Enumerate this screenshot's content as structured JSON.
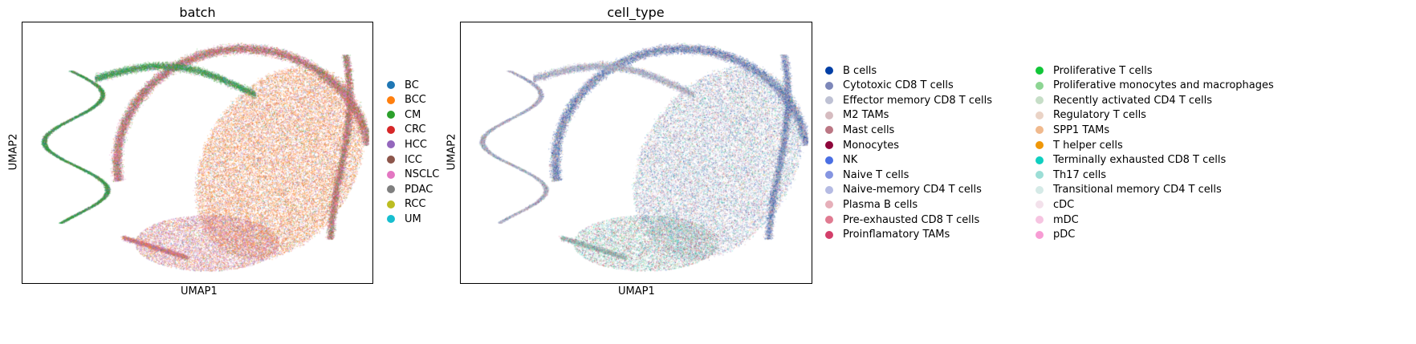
{
  "chart_data": [
    {
      "type": "scatter",
      "title": "batch",
      "xlabel": "UMAP1",
      "ylabel": "UMAP2",
      "grid": false,
      "legend_position": "right",
      "series": [
        {
          "name": "BC",
          "color": "#1f77b4"
        },
        {
          "name": "BCC",
          "color": "#ff7f0e"
        },
        {
          "name": "CM",
          "color": "#2ca02c"
        },
        {
          "name": "CRC",
          "color": "#d62728"
        },
        {
          "name": "HCC",
          "color": "#9467bd"
        },
        {
          "name": "ICC",
          "color": "#8c564b"
        },
        {
          "name": "NSCLC",
          "color": "#e377c2"
        },
        {
          "name": "PDAC",
          "color": "#7f7f7f"
        },
        {
          "name": "RCC",
          "color": "#bcbd22"
        },
        {
          "name": "UM",
          "color": "#17becf"
        }
      ]
    },
    {
      "type": "scatter",
      "title": "cell_type",
      "xlabel": "UMAP1",
      "ylabel": "UMAP2",
      "grid": false,
      "legend_position": "right, two columns",
      "series": [
        {
          "name": "B cells",
          "color": "#023fa5"
        },
        {
          "name": "Cytotoxic CD8 T cells",
          "color": "#7d87b9"
        },
        {
          "name": "Effector memory CD8 T cells",
          "color": "#bec1d4"
        },
        {
          "name": "M2 TAMs",
          "color": "#d6bcc0"
        },
        {
          "name": "Mast cells",
          "color": "#bb7784"
        },
        {
          "name": "Monocytes",
          "color": "#8e063b"
        },
        {
          "name": "NK",
          "color": "#4a6fe3"
        },
        {
          "name": "Naive T cells",
          "color": "#8595e1"
        },
        {
          "name": "Naive-memory CD4 T cells",
          "color": "#b5bbe3"
        },
        {
          "name": "Plasma B cells",
          "color": "#e6afb9"
        },
        {
          "name": "Pre-exhausted CD8 T cells",
          "color": "#e07b91"
        },
        {
          "name": "Proinflamatory TAMs",
          "color": "#d33f6a"
        },
        {
          "name": "Proliferative T cells",
          "color": "#11c638"
        },
        {
          "name": "Proliferative monocytes and macrophages",
          "color": "#8dd593"
        },
        {
          "name": "Recently activated CD4 T cells",
          "color": "#c6dec7"
        },
        {
          "name": "Regulatory T cells",
          "color": "#ead3c6"
        },
        {
          "name": "SPP1 TAMs",
          "color": "#f0b98d"
        },
        {
          "name": "T helper cells",
          "color": "#ef9708"
        },
        {
          "name": "Terminally exhausted CD8 T cells",
          "color": "#0fcfc0"
        },
        {
          "name": "Th17 cells",
          "color": "#9cded6"
        },
        {
          "name": "Transitional memory CD4 T cells",
          "color": "#d5eae7"
        },
        {
          "name": "cDC",
          "color": "#f3e1eb"
        },
        {
          "name": "mDC",
          "color": "#f6c4e1"
        },
        {
          "name": "pDC",
          "color": "#f79cd4"
        }
      ]
    }
  ]
}
